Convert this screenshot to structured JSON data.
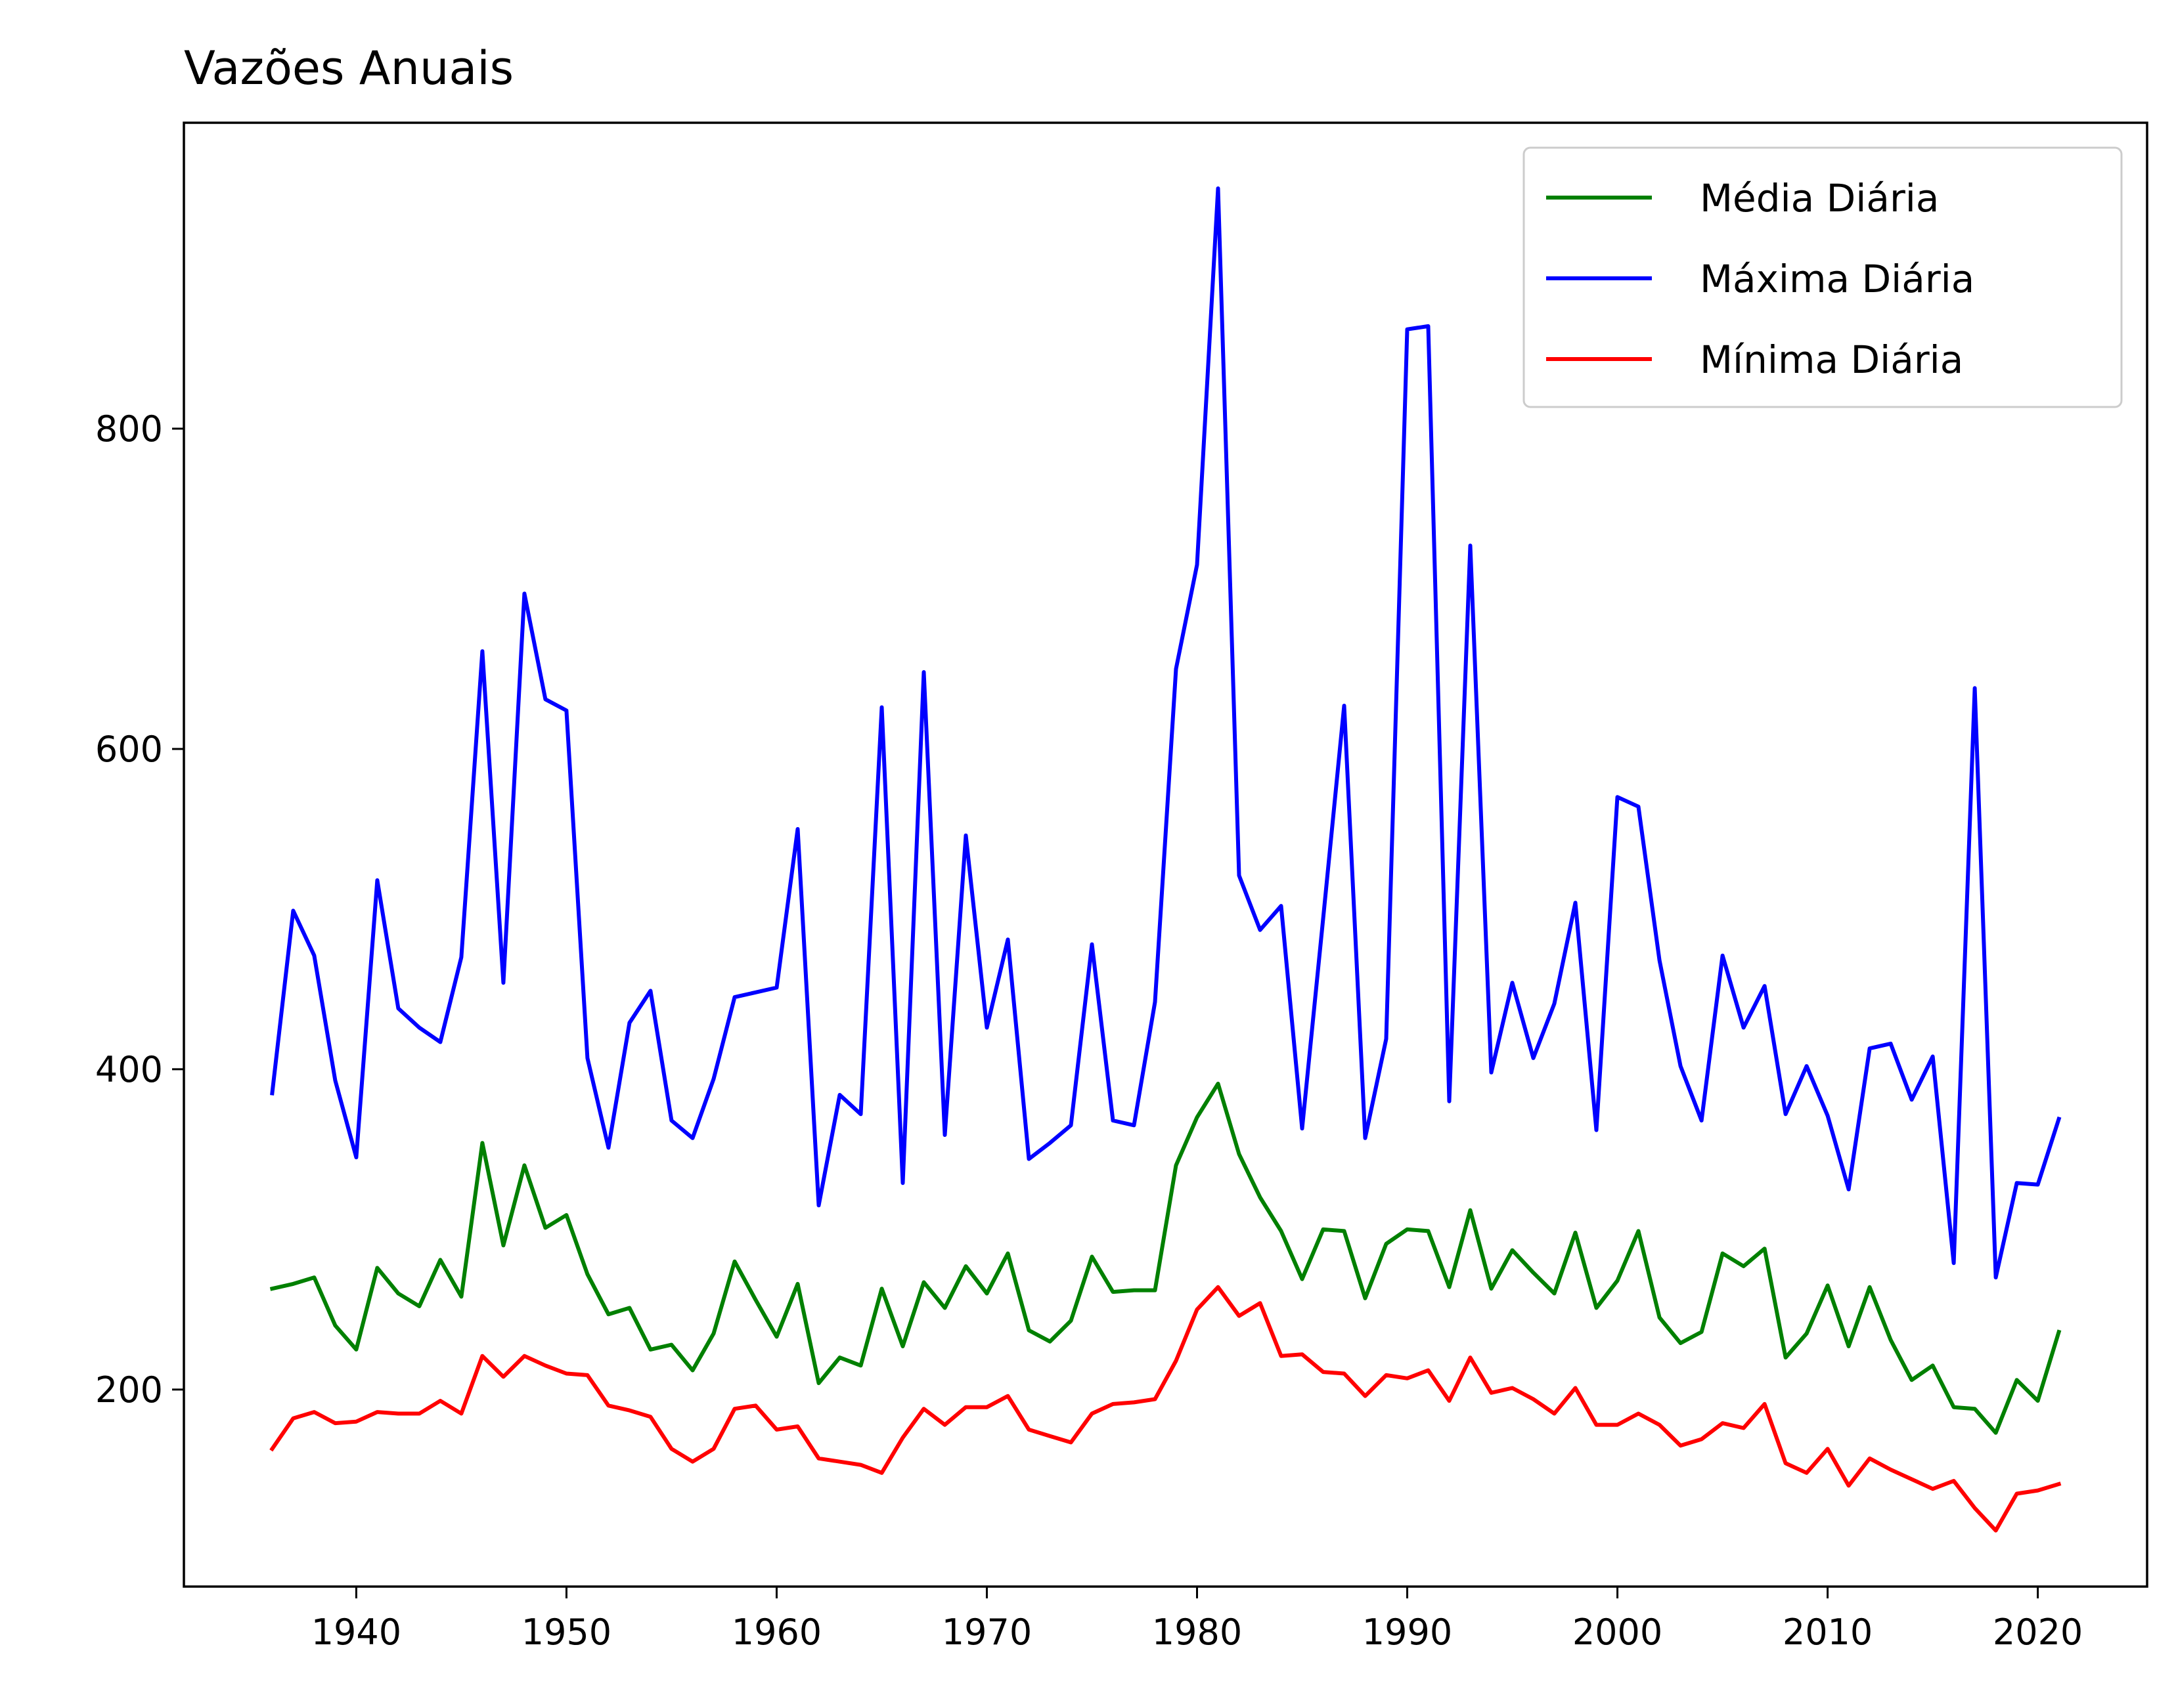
{
  "chart_data": {
    "type": "line",
    "title": "Vazões Anuais",
    "xlabel": "",
    "ylabel": "",
    "xlim": [
      1931.8,
      2025.2
    ],
    "ylim": [
      77,
      991
    ],
    "xticks": [
      1940,
      1950,
      1960,
      1970,
      1980,
      1990,
      2000,
      2010,
      2020
    ],
    "yticks": [
      200,
      400,
      600,
      800
    ],
    "grid": false,
    "legend_position": "top-right",
    "x": [
      1936,
      1937,
      1938,
      1939,
      1940,
      1941,
      1942,
      1943,
      1944,
      1945,
      1946,
      1947,
      1948,
      1949,
      1950,
      1951,
      1952,
      1953,
      1954,
      1955,
      1956,
      1957,
      1958,
      1959,
      1960,
      1961,
      1962,
      1963,
      1964,
      1965,
      1966,
      1967,
      1968,
      1969,
      1970,
      1971,
      1972,
      1973,
      1974,
      1975,
      1976,
      1977,
      1978,
      1979,
      1980,
      1981,
      1982,
      1983,
      1984,
      1985,
      1986,
      1987,
      1988,
      1989,
      1990,
      1991,
      1992,
      1993,
      1994,
      1995,
      1996,
      1997,
      1998,
      1999,
      2000,
      2001,
      2002,
      2003,
      2004,
      2005,
      2006,
      2007,
      2008,
      2009,
      2010,
      2011,
      2012,
      2013,
      2014,
      2015,
      2016,
      2017,
      2018,
      2019,
      2020,
      2021
    ],
    "series": [
      {
        "name": "Média Diária",
        "color": "#008000",
        "values": [
          263,
          266,
          270,
          240,
          225,
          276,
          260,
          252,
          281,
          258,
          354,
          290,
          340,
          301,
          309,
          272,
          247,
          251,
          225,
          228,
          212,
          235,
          280,
          256,
          233,
          266,
          204,
          220,
          215,
          263,
          227,
          267,
          251,
          277,
          260,
          285,
          237,
          230,
          243,
          283,
          261,
          262,
          262,
          340,
          370,
          391,
          347,
          320,
          299,
          269,
          300,
          299,
          257,
          291,
          300,
          299,
          264,
          312,
          263,
          287,
          273,
          260,
          298,
          251,
          268,
          299,
          245,
          229,
          236,
          285,
          277,
          288,
          220,
          235,
          265,
          227,
          264,
          231,
          206,
          215,
          189,
          188,
          173,
          206,
          193,
          236
        ]
      },
      {
        "name": "Máxima Diária",
        "color": "#0000ff",
        "values": [
          385,
          499,
          471,
          393,
          345,
          518,
          438,
          426,
          417,
          470,
          661,
          454,
          697,
          631,
          624,
          407,
          351,
          429,
          449,
          368,
          357,
          394,
          445,
          448,
          451,
          550,
          315,
          384,
          372,
          626,
          329,
          648,
          359,
          546,
          426,
          481,
          344,
          354,
          365,
          478,
          368,
          365,
          442,
          650,
          715,
          950,
          521,
          487,
          502,
          363,
          494,
          627,
          357,
          419,
          862,
          864,
          380,
          727,
          398,
          454,
          407,
          441,
          504,
          362,
          570,
          564,
          468,
          402,
          368,
          471,
          426,
          452,
          372,
          402,
          371,
          325,
          413,
          416,
          381,
          408,
          279,
          638,
          270,
          329,
          328,
          369
        ]
      },
      {
        "name": "Mínima Diária",
        "color": "#ff0000",
        "values": [
          163,
          182,
          186,
          179,
          180,
          186,
          185,
          185,
          193,
          185,
          221,
          208,
          221,
          215,
          210,
          209,
          190,
          187,
          183,
          163,
          155,
          163,
          188,
          190,
          175,
          177,
          157,
          155,
          153,
          148,
          170,
          188,
          178,
          189,
          189,
          196,
          175,
          171,
          167,
          185,
          191,
          192,
          194,
          218,
          250,
          264,
          246,
          254,
          221,
          222,
          211,
          210,
          196,
          209,
          207,
          212,
          193,
          220,
          198,
          201,
          194,
          185,
          201,
          178,
          178,
          185,
          178,
          165,
          169,
          179,
          176,
          191,
          154,
          148,
          163,
          140,
          157,
          150,
          144,
          138,
          143,
          126,
          112,
          135,
          137,
          141
        ]
      }
    ]
  }
}
